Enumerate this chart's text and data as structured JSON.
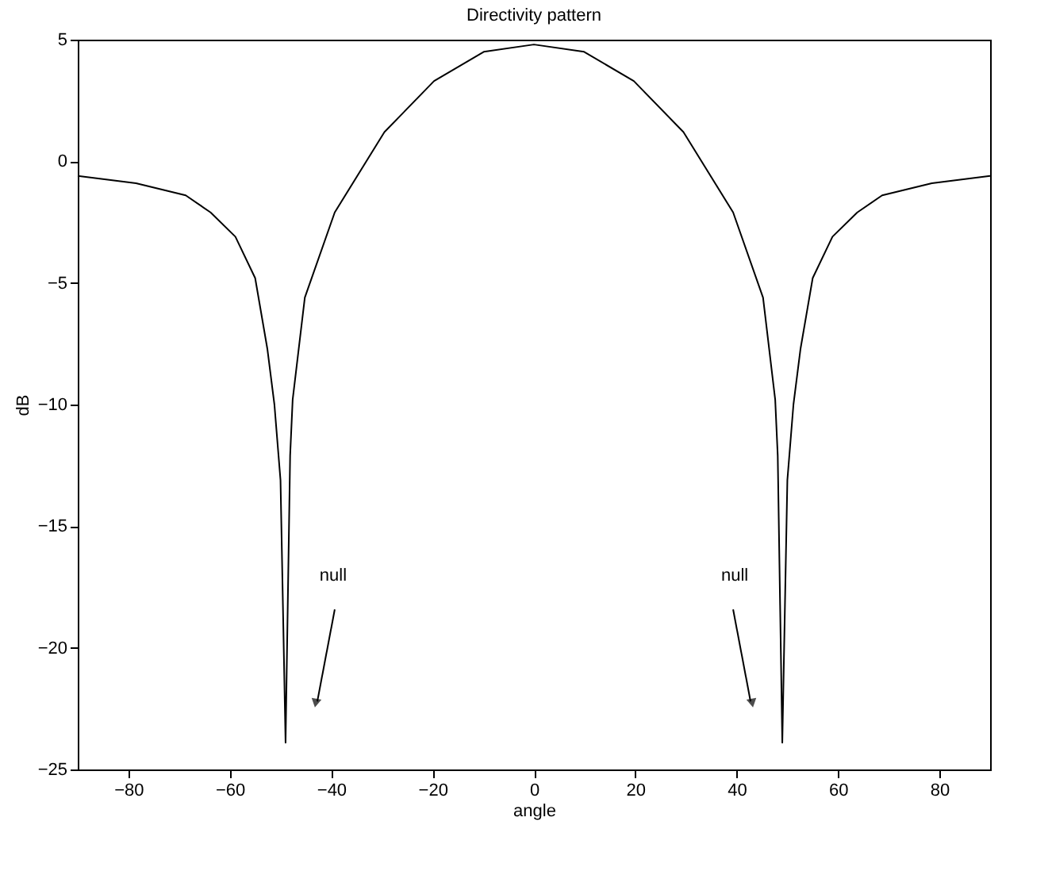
{
  "chart_data": {
    "type": "line",
    "title": "Directivity pattern",
    "xlabel": "angle",
    "ylabel": "dB",
    "x": [
      -90,
      -78.5,
      -68.7,
      -63.8,
      -58.9,
      -55,
      -52.6,
      -51.2,
      -50,
      -49,
      -48.1,
      -47.6,
      -45.2,
      -39.3,
      -29.5,
      -19.7,
      -9.9,
      0,
      9.9,
      19.7,
      29.5,
      39.3,
      45.2,
      47.6,
      48.1,
      49,
      50,
      51.2,
      52.6,
      55,
      58.9,
      63.8,
      68.7,
      78.5,
      90
    ],
    "series": [
      {
        "color": "#000000",
        "values": [
          -0.6,
          -0.9,
          -1.4,
          -2.1,
          -3.1,
          -4.8,
          -7.7,
          -10,
          -13.1,
          -23.9,
          -12.1,
          -9.8,
          -5.6,
          -2.1,
          1.2,
          3.3,
          4.5,
          4.8,
          4.5,
          3.3,
          1.2,
          -2.1,
          -5.6,
          -9.8,
          -12.1,
          -23.9,
          -13.1,
          -10,
          -7.7,
          -4.8,
          -3.1,
          -2.1,
          -1.4,
          -0.9,
          -0.6
        ]
      }
    ],
    "xlim": [
      -90,
      90
    ],
    "xticks": [
      -80,
      -60,
      -40,
      -20,
      0,
      20,
      40,
      60,
      80
    ],
    "ylim": [
      -25,
      5
    ],
    "yticks": [
      -25,
      -20,
      -15,
      -10,
      -5,
      0,
      5
    ],
    "grid": false,
    "marker": "none",
    "line_style": "solid",
    "annotations": [
      "null",
      "null"
    ]
  }
}
